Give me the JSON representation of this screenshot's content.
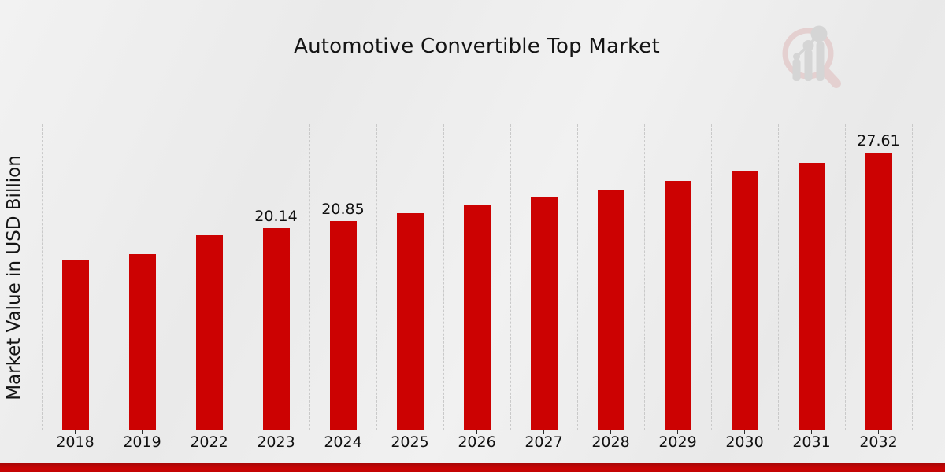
{
  "chart_data": {
    "type": "bar",
    "title": "Automotive Convertible Top Market",
    "ylabel": "Market Value in USD Billion",
    "xlabel": "",
    "categories": [
      "2018",
      "2019",
      "2022",
      "2023",
      "2024",
      "2025",
      "2026",
      "2027",
      "2028",
      "2029",
      "2030",
      "2031",
      "2032"
    ],
    "values": [
      16.94,
      17.56,
      19.45,
      20.14,
      20.85,
      21.59,
      22.36,
      23.16,
      23.99,
      24.84,
      25.73,
      26.65,
      27.61
    ],
    "value_labels": [
      "",
      "",
      "",
      "20.14",
      "20.85",
      "",
      "",
      "",
      "",
      "",
      "",
      "",
      "27.61"
    ],
    "ylim": [
      0,
      30.46
    ],
    "bar_color": "#cc0202",
    "grid": "vertical-dashed",
    "gridline_color": "#c9c9c9",
    "legend": "none"
  },
  "watermark": {
    "name": "magnifier-bar-chart-logo",
    "ring_color": "#e0bfbf",
    "glyph_color": "#c7c7c7"
  },
  "footer": {
    "accent_bar_color": "#c90404"
  }
}
